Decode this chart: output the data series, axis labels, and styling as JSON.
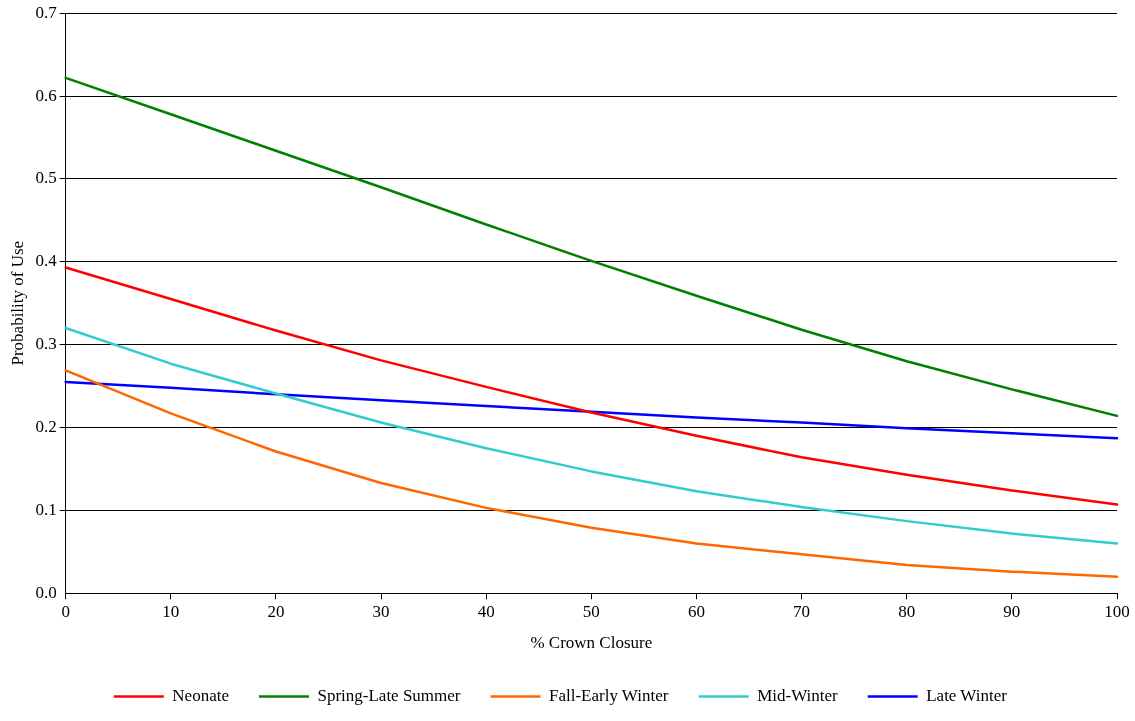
{
  "chart_data": {
    "type": "line",
    "xlabel": "% Crown Closure",
    "ylabel": "Probability of Use",
    "x": [
      0,
      10,
      20,
      30,
      40,
      50,
      60,
      70,
      80,
      90,
      100
    ],
    "series": [
      {
        "name": "Neonate",
        "color": "#ff0000",
        "values": [
          0.393,
          0.355,
          0.317,
          0.281,
          0.249,
          0.218,
          0.19,
          0.164,
          0.143,
          0.124,
          0.107
        ]
      },
      {
        "name": "Spring-Late Summer",
        "color": "#008000",
        "values": [
          0.622,
          0.578,
          0.534,
          0.49,
          0.445,
          0.401,
          0.359,
          0.318,
          0.28,
          0.246,
          0.214
        ]
      },
      {
        "name": "Fall-Early Winter",
        "color": "#ff6600",
        "values": [
          0.269,
          0.217,
          0.171,
          0.133,
          0.103,
          0.079,
          0.06,
          0.047,
          0.034,
          0.026,
          0.02
        ]
      },
      {
        "name": "Mid-Winter",
        "color": "#33cccc",
        "values": [
          0.32,
          0.277,
          0.241,
          0.206,
          0.175,
          0.147,
          0.123,
          0.104,
          0.087,
          0.072,
          0.06
        ]
      },
      {
        "name": "Late Winter",
        "color": "#0000ff",
        "values": [
          0.255,
          0.248,
          0.24,
          0.233,
          0.226,
          0.219,
          0.212,
          0.206,
          0.199,
          0.193,
          0.187
        ]
      }
    ],
    "xlim": [
      0,
      100
    ],
    "xticks": [
      0,
      10,
      20,
      30,
      40,
      50,
      60,
      70,
      80,
      90,
      100
    ],
    "ylim": [
      0,
      0.7
    ],
    "yticks": [
      {
        "value": 0,
        "label": "0.0"
      },
      0.1,
      0.2,
      0.3,
      0.4,
      0.5,
      0.6,
      0.7
    ],
    "grid": "y",
    "legend": "bottom",
    "marker": "none",
    "line_style": "solid"
  }
}
